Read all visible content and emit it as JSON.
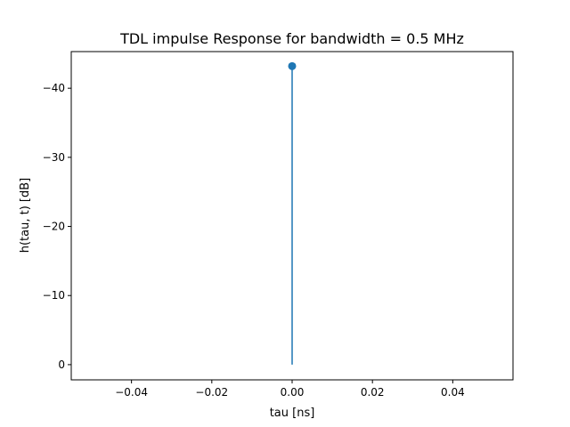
{
  "chart_data": {
    "type": "stem",
    "title": "TDL impulse Response for bandwidth = 0.5 MHz",
    "xlabel": "tau [ns]",
    "ylabel": "h(tau, t) [dB]",
    "xlim": [
      -0.055,
      0.055
    ],
    "ylim": [
      2.2,
      -45.3
    ],
    "y_inverted": true,
    "xticks": [
      -0.04,
      -0.02,
      0.0,
      0.02,
      0.04
    ],
    "xtick_labels": [
      "−0.04",
      "−0.02",
      "0.00",
      "0.02",
      "0.04"
    ],
    "yticks": [
      0,
      -10,
      -20,
      -30,
      -40
    ],
    "ytick_labels": [
      "0",
      "−10",
      "−20",
      "−30",
      "−40"
    ],
    "grid": false,
    "series": [
      {
        "color": "#1f77b4",
        "points": [
          {
            "x": 0.0,
            "y": -43.2
          }
        ],
        "baseline": 0
      }
    ]
  }
}
